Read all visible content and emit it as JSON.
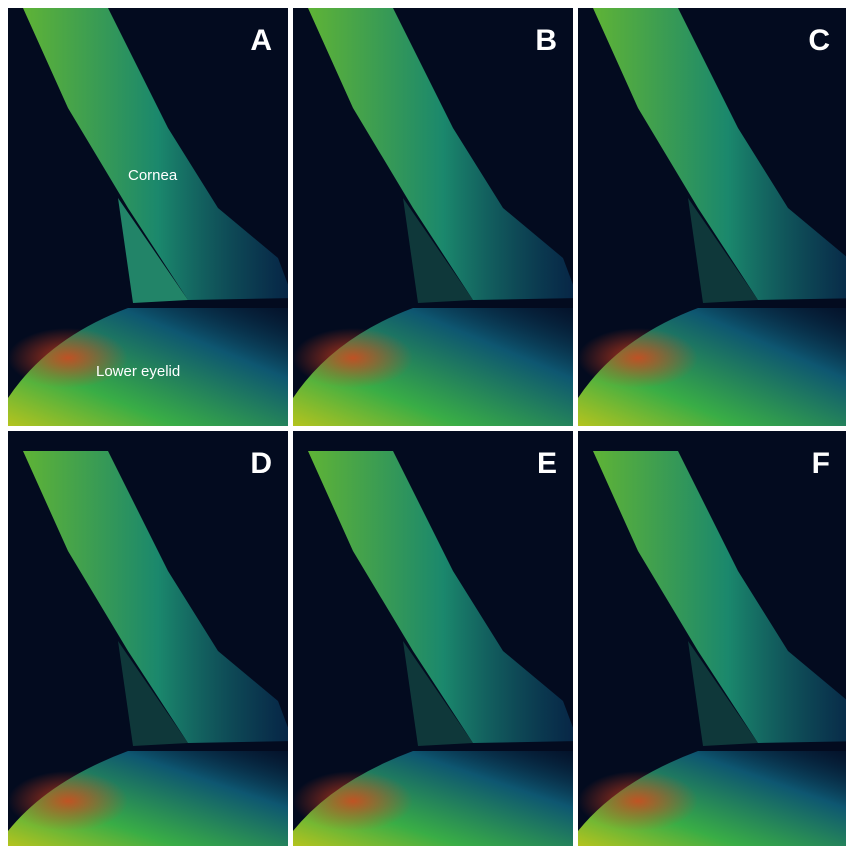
{
  "panels": [
    {
      "label": "A",
      "annotations": [
        "Cornea",
        "Lower eyelid"
      ]
    },
    {
      "label": "B"
    },
    {
      "label": "C"
    },
    {
      "label": "D"
    },
    {
      "label": "E"
    },
    {
      "label": "F"
    }
  ]
}
